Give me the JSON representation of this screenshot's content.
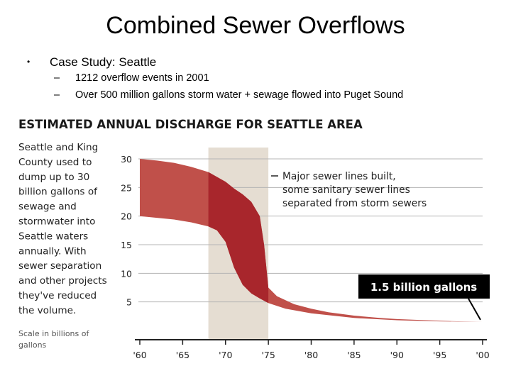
{
  "slide": {
    "title": "Combined Sewer Overflows",
    "bullet": "Case Study: Seattle",
    "subbullets": [
      "1212 overflow events in 2001",
      "Over 500 million gallons storm water + sewage flowed into Puget Sound"
    ]
  },
  "chart_data": {
    "type": "area",
    "title": "ESTIMATED ANNUAL DISCHARGE FOR SEATTLE AREA",
    "side_note_lines": [
      "Seattle and King",
      "County used to",
      "dump up to 30",
      "billion gallons of",
      "sewage and",
      "stormwater into",
      "Seattle waters",
      "annually. With",
      "sewer separation",
      "and other projects",
      "they've reduced",
      "the volume."
    ],
    "scale_note_lines": [
      "Scale in billions of",
      "gallons"
    ],
    "x_ticks": [
      "'60",
      "'65",
      "'70",
      "'75",
      "'80",
      "'85",
      "'90",
      "'95",
      "'00"
    ],
    "y_ticks": [
      5,
      10,
      15,
      20,
      25,
      30
    ],
    "xlim": [
      1960,
      2000
    ],
    "ylim": [
      0,
      30
    ],
    "grid": true,
    "highlight_period": [
      1968,
      1975
    ],
    "annotation_lines": [
      "Major sewer lines built,",
      "some sanitary sewer lines",
      "separated from storm sewers"
    ],
    "callout": "1.5 billion gallons",
    "colors": {
      "band": "#c0504a",
      "band_highlight": "#a8262c",
      "highlight_bg": "#e5ddd2",
      "callout_bg": "#000000",
      "grid": "#b5b5b5"
    },
    "series": [
      {
        "x": [
          1960,
          1962,
          1964,
          1966,
          1968,
          1970,
          1971,
          1972,
          1973,
          1974,
          1974.5,
          1975,
          1976,
          1978,
          1980,
          1982,
          1985,
          1988,
          1990,
          1995,
          2000
        ],
        "values": [
          30,
          29.7,
          29.3,
          28.6,
          27.7,
          26,
          24.8,
          23.8,
          22.5,
          20,
          15,
          7.5,
          6,
          4.6,
          3.8,
          3.2,
          2.6,
          2.2,
          2,
          1.7,
          1.5
        ]
      },
      {
        "x": [
          1960,
          1964,
          1966,
          1968,
          1969,
          1970,
          1971,
          1972,
          1973,
          1974,
          1975,
          1977,
          1980,
          1985,
          1990,
          1995,
          2000
        ],
        "values": [
          20,
          19.4,
          18.9,
          18.2,
          17.5,
          15.5,
          11,
          8,
          6.5,
          5.6,
          4.8,
          3.8,
          3,
          2.2,
          1.8,
          1.6,
          1.5
        ]
      }
    ]
  }
}
